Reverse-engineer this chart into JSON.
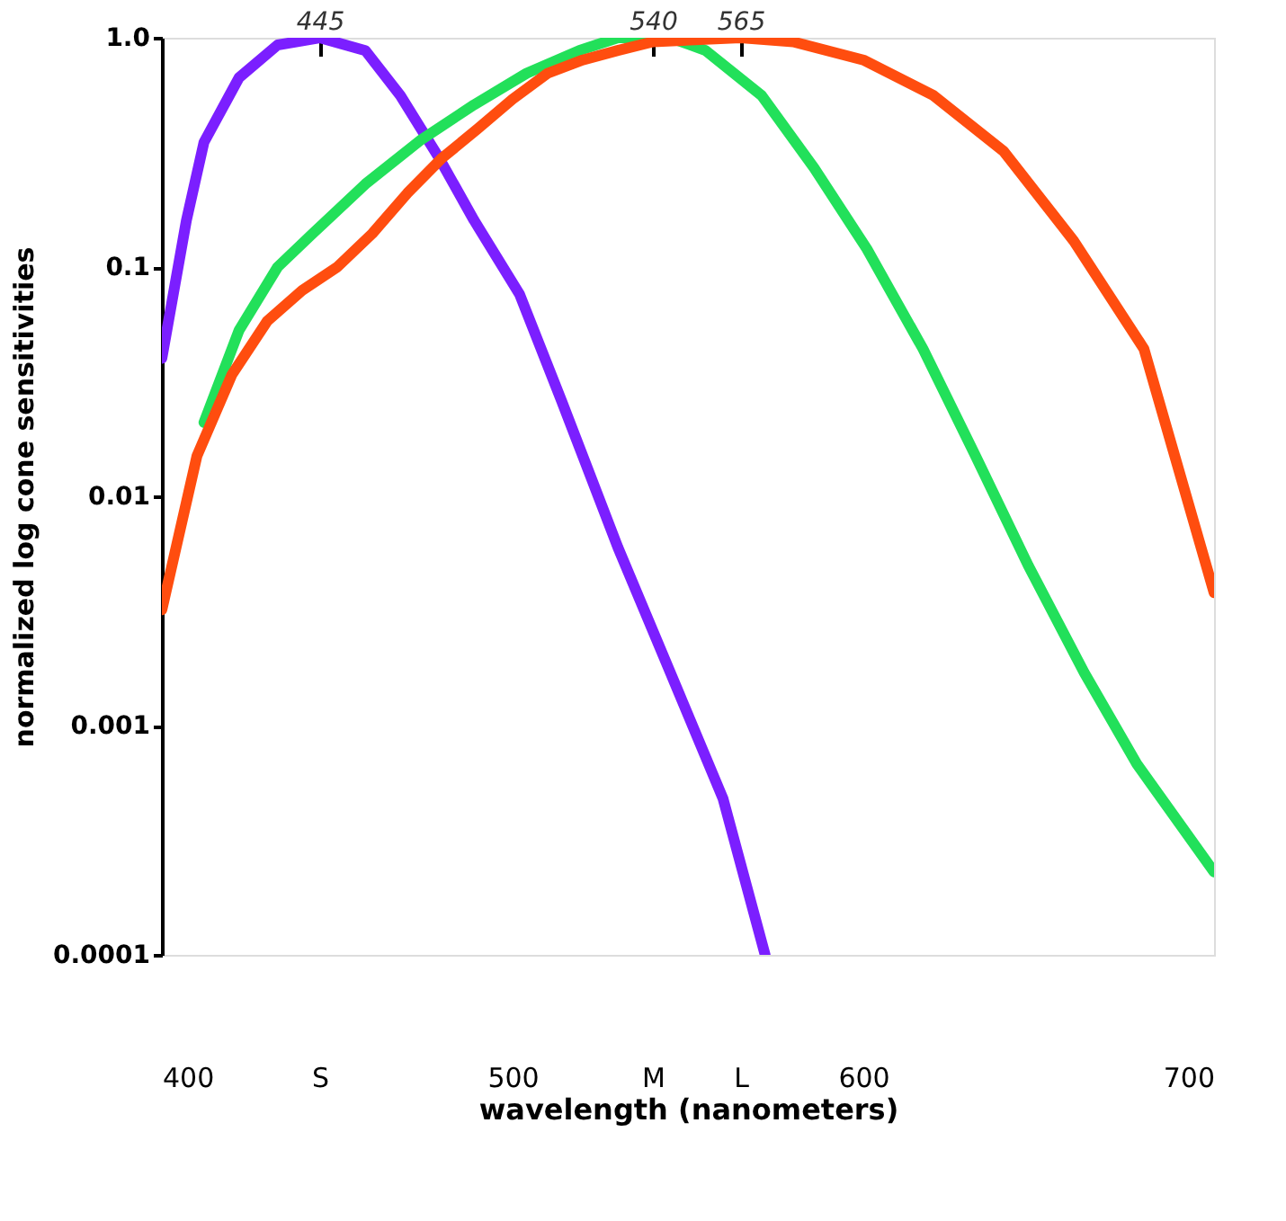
{
  "chart_data": {
    "type": "line",
    "xlabel": "wavelength (nanometers)",
    "ylabel": "normalized log cone sensitivities",
    "log": "y",
    "grid": false,
    "marker": "none",
    "line_style": "solid",
    "xlim": [
      400,
      700
    ],
    "xticks": [
      400,
      {
        "value": 445,
        "label": "S"
      },
      500,
      {
        "value": 540,
        "label": "M"
      },
      {
        "value": 565,
        "label": "L"
      },
      600,
      700
    ],
    "x2lim": [
      400,
      700
    ],
    "x2ticks": [
      445,
      540,
      565
    ],
    "ylim": [
      0.0001,
      1
    ],
    "yticks": [
      0.0001,
      0.001,
      0.01,
      0.1,
      {
        "value": 1,
        "label": "1.0"
      }
    ],
    "series": [
      {
        "color": "#7b1fff",
        "x": [
          400,
          407,
          412,
          422,
          433,
          445,
          458,
          468,
          479,
          489,
          502,
          514,
          530,
          545,
          560,
          572
        ],
        "values": [
          0.04,
          0.16,
          0.35,
          0.67,
          0.93,
          1.0,
          0.88,
          0.56,
          0.3,
          0.16,
          0.076,
          0.026,
          0.006,
          0.0017,
          0.00048,
          0.0001
        ]
      },
      {
        "color": "#22e05a",
        "x": [
          412,
          422,
          433,
          443,
          458,
          474,
          489,
          504,
          519,
          530,
          545,
          555,
          571,
          586,
          601,
          617,
          632,
          647,
          663,
          678,
          700
        ],
        "values": [
          0.021,
          0.053,
          0.1,
          0.14,
          0.23,
          0.36,
          0.51,
          0.7,
          0.88,
          1.0,
          1.0,
          0.88,
          0.56,
          0.27,
          0.12,
          0.044,
          0.015,
          0.005,
          0.0017,
          0.00068,
          0.00023
        ]
      },
      {
        "color": "#ff4d0f",
        "x": [
          400,
          410,
          420,
          430,
          440,
          450,
          460,
          470,
          480,
          490,
          500,
          510,
          520,
          530,
          540,
          565,
          580,
          600,
          620,
          640,
          660,
          680,
          700
        ],
        "values": [
          0.0032,
          0.015,
          0.034,
          0.058,
          0.079,
          0.1,
          0.14,
          0.21,
          0.3,
          0.4,
          0.54,
          0.7,
          0.8,
          0.88,
          0.96,
          1.0,
          0.96,
          0.8,
          0.56,
          0.32,
          0.13,
          0.044,
          0.0038
        ]
      }
    ]
  }
}
